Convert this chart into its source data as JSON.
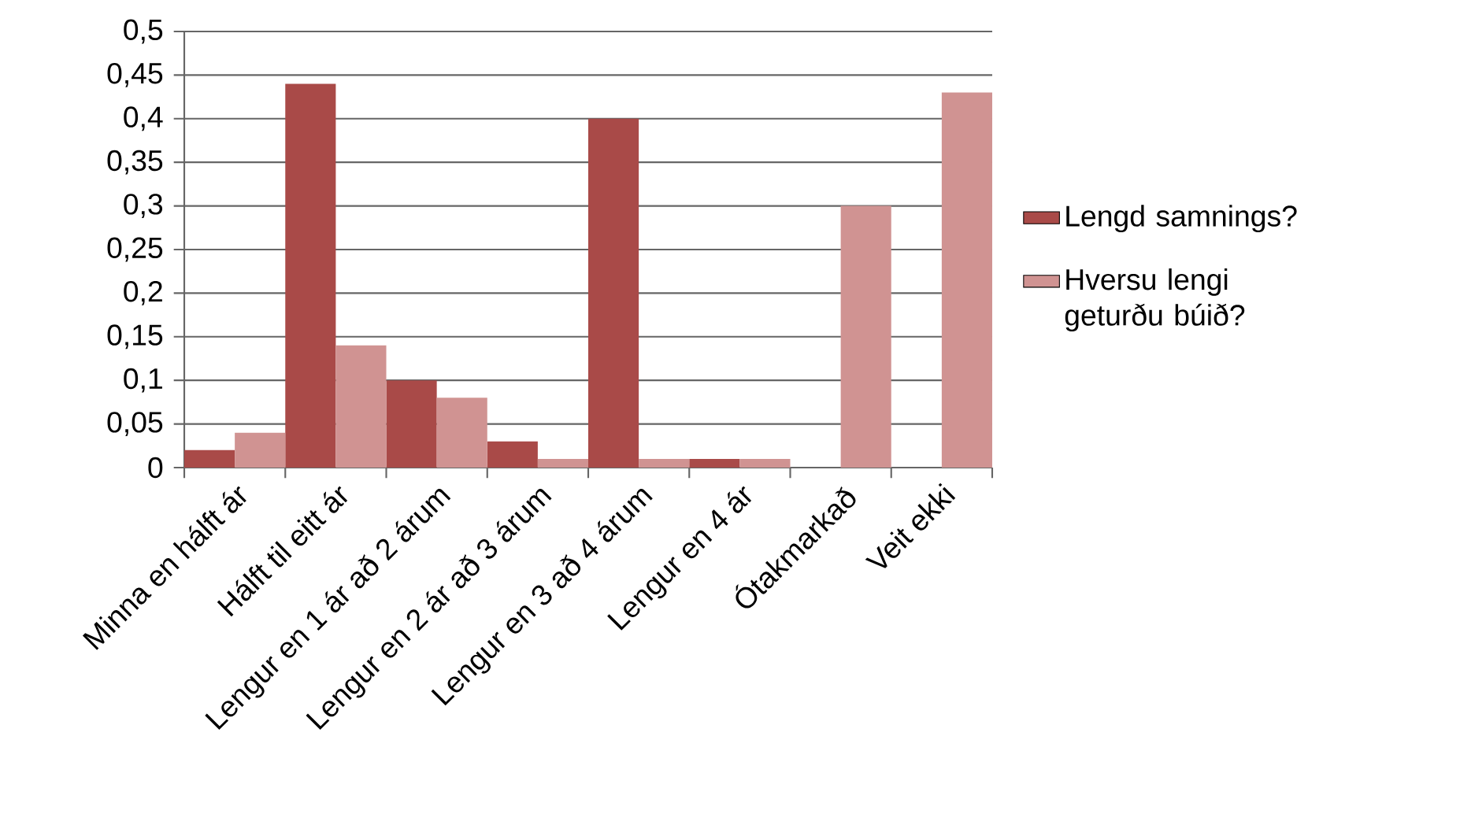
{
  "chart_data": {
    "type": "bar",
    "categories": [
      "Minna en hálft ár",
      "Hálft til eitt ár",
      "Lengur en 1  ár að  2 árum",
      "Lengur en 2 ár að 3 árum",
      "Lengur en 3 að 4 árum",
      "Lengur en  4 ár",
      "Ótakmarkað",
      "Veit ekki"
    ],
    "series": [
      {
        "name": "Lengd samnings?",
        "color": "#a94a48",
        "values": [
          0.02,
          0.44,
          0.1,
          0.03,
          0.4,
          0.01,
          0,
          0
        ]
      },
      {
        "name": "Hversu lengi geturðu búið?",
        "color": "#d09392",
        "values": [
          0.04,
          0.14,
          0.08,
          0.01,
          0.01,
          0.01,
          0.3,
          0.43
        ]
      }
    ],
    "ylim": [
      0,
      0.5
    ],
    "yticks": [
      {
        "value": 0,
        "label": "0"
      },
      {
        "value": 0.05,
        "label": "0,05"
      },
      {
        "value": 0.1,
        "label": "0,1"
      },
      {
        "value": 0.15,
        "label": "0,15"
      },
      {
        "value": 0.2,
        "label": "0,2"
      },
      {
        "value": 0.25,
        "label": "0,25"
      },
      {
        "value": 0.3,
        "label": "0,3"
      },
      {
        "value": 0.35,
        "label": "0,35"
      },
      {
        "value": 0.4,
        "label": "0,4"
      },
      {
        "value": 0.45,
        "label": "0,45"
      },
      {
        "value": 0.5,
        "label": "0,5"
      }
    ],
    "grid": "y",
    "legend": "right"
  }
}
